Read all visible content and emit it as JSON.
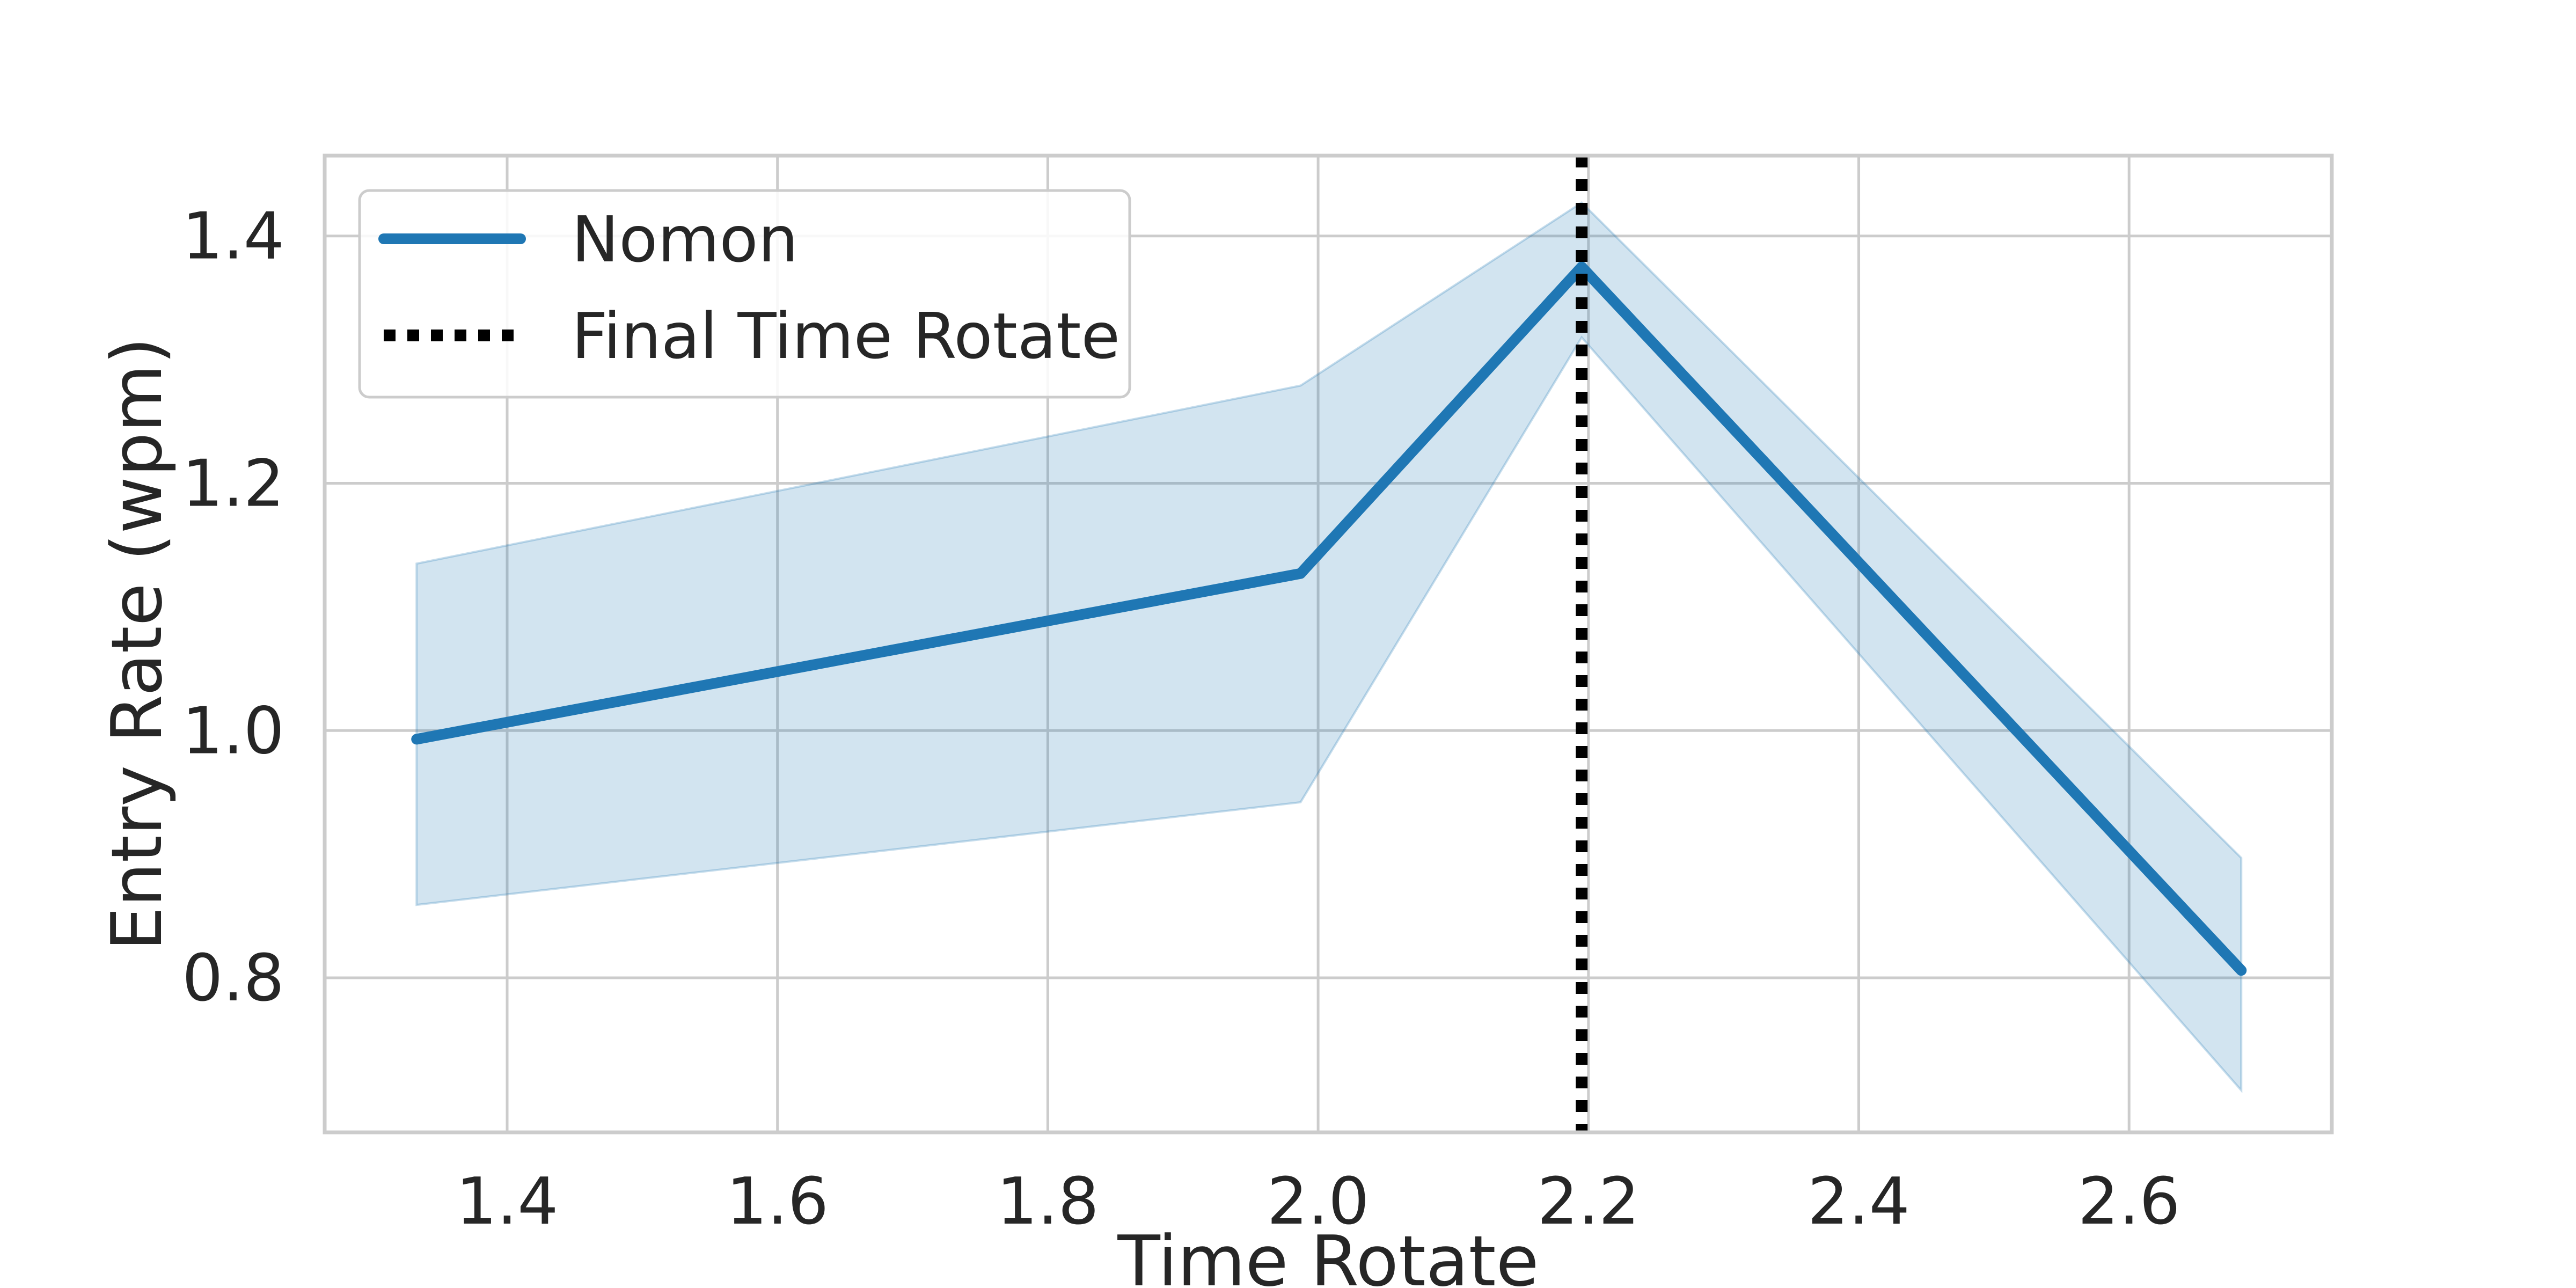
{
  "chart_data": {
    "type": "line",
    "title": "",
    "xlabel": "Time Rotate",
    "ylabel": "Entry Rate (wpm)",
    "xlim": [
      1.265,
      2.75
    ],
    "ylim": [
      0.675,
      1.465
    ],
    "xticks": [
      1.4,
      1.6,
      1.8,
      2.0,
      2.2,
      2.4,
      2.6
    ],
    "xtick_labels": [
      "1.4",
      "1.6",
      "1.8",
      "2.0",
      "2.2",
      "2.4",
      "2.6"
    ],
    "yticks": [
      0.8,
      1.0,
      1.2,
      1.4
    ],
    "ytick_labels": [
      "0.8",
      "1.0",
      "1.2",
      "1.4"
    ],
    "grid": true,
    "legend_position": "top-left",
    "series": [
      {
        "name": "Nomon",
        "color": "#1f77b4",
        "x": [
          1.333,
          1.987,
          2.195,
          2.683
        ],
        "y": [
          0.993,
          1.127,
          1.375,
          0.806
        ],
        "ci_lower": [
          0.859,
          0.942,
          1.318,
          0.709
        ],
        "ci_upper": [
          1.135,
          1.279,
          1.427,
          0.897
        ]
      }
    ],
    "vlines": [
      {
        "name": "Final Time Rotate",
        "x": 2.195,
        "color": "#000000",
        "style": "dotted"
      }
    ]
  }
}
